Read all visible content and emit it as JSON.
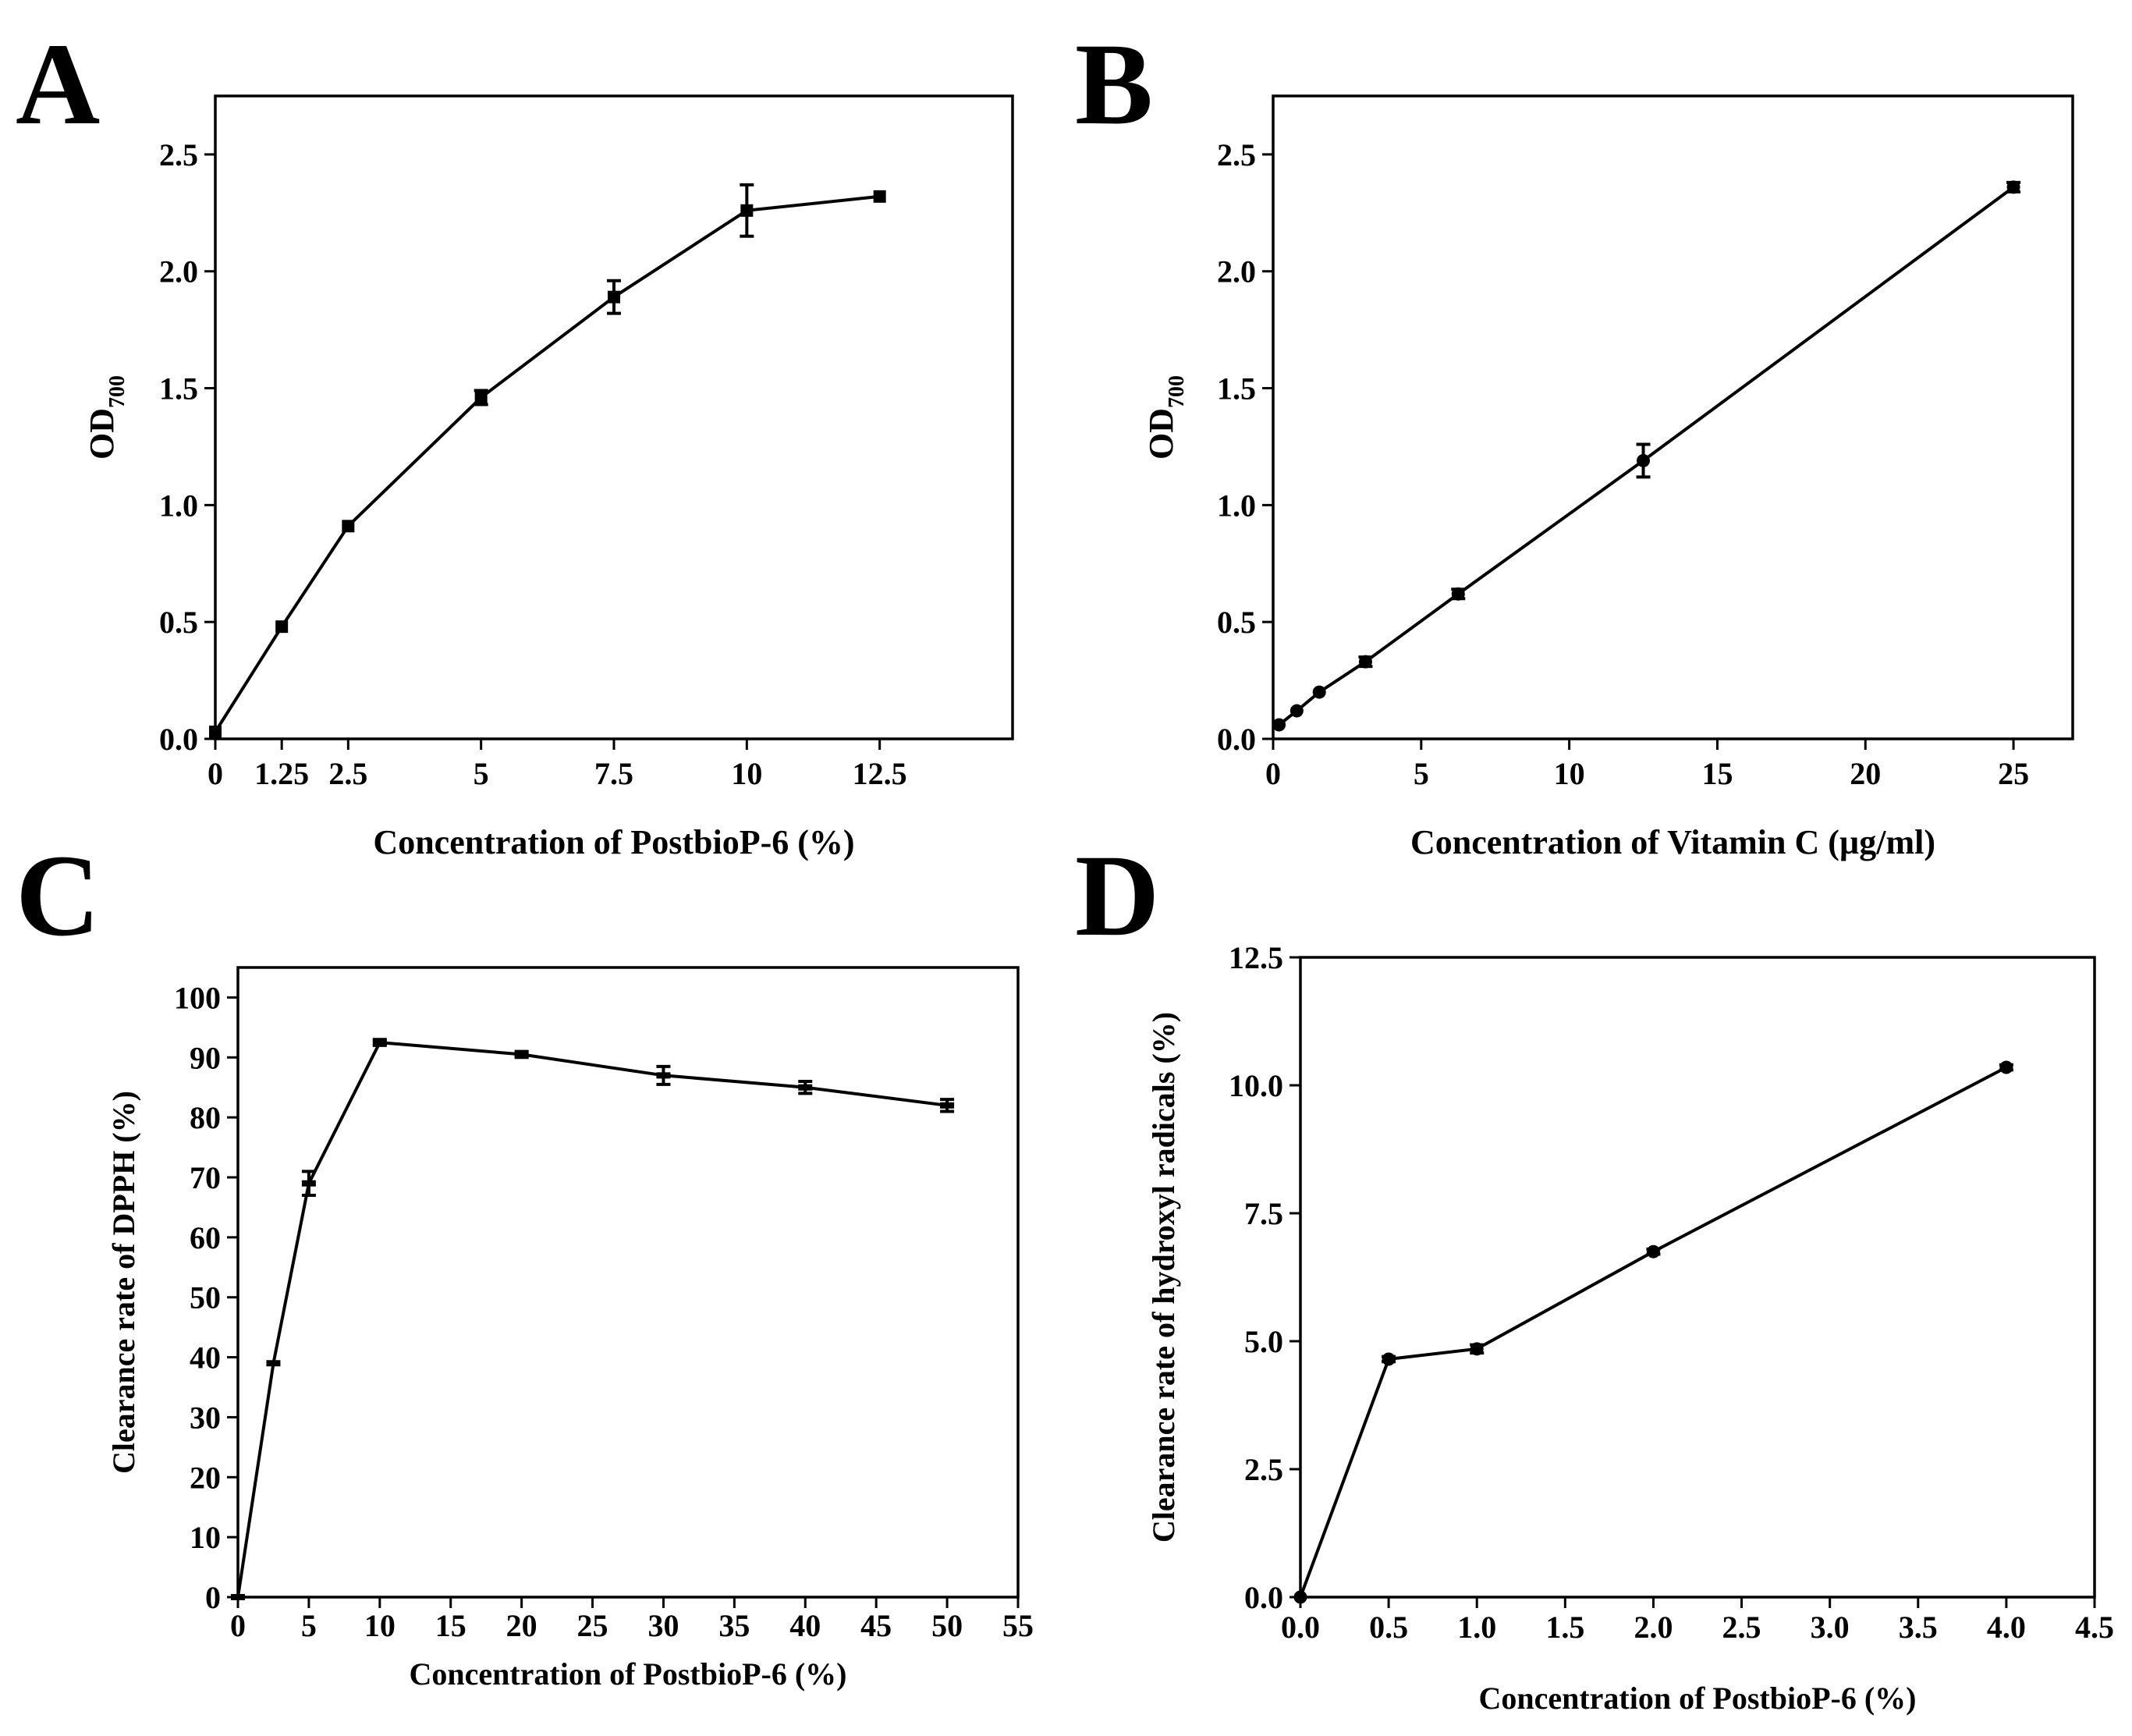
{
  "chart_data": [
    {
      "id": "A",
      "panel_label": "A",
      "type": "line",
      "xlabel": "Concentration of PostbioP-6 (%)",
      "ylabel_main": "OD",
      "ylabel_sub": "700",
      "xlim": [
        0,
        15
      ],
      "ylim": [
        0,
        2.75
      ],
      "xticks": [
        0,
        1.25,
        2.5,
        5,
        7.5,
        10,
        12.5
      ],
      "xtick_labels": [
        "0",
        "1.25",
        "2.5",
        "5",
        "7.5",
        "10",
        "12.5"
      ],
      "yticks": [
        0,
        0.5,
        1.0,
        1.5,
        2.0,
        2.5
      ],
      "ytick_labels": [
        "0.0",
        "0.5",
        "1.0",
        "1.5",
        "2.0",
        "2.5"
      ],
      "marker": "square",
      "points": [
        {
          "x": 0,
          "y": 0.03,
          "err": 0
        },
        {
          "x": 1.25,
          "y": 0.48,
          "err": 0.01
        },
        {
          "x": 2.5,
          "y": 0.91,
          "err": 0.01
        },
        {
          "x": 5,
          "y": 1.46,
          "err": 0.03
        },
        {
          "x": 7.5,
          "y": 1.89,
          "err": 0.07
        },
        {
          "x": 10,
          "y": 2.26,
          "err": 0.11
        },
        {
          "x": 12.5,
          "y": 2.32,
          "err": 0.01
        }
      ]
    },
    {
      "id": "B",
      "panel_label": "B",
      "type": "line",
      "xlabel": "Concentration of Vitamin C (µg/ml)",
      "ylabel_main": "OD",
      "ylabel_sub": "700",
      "xlim": [
        0,
        27
      ],
      "ylim": [
        0,
        2.75
      ],
      "xticks": [
        0,
        5,
        10,
        15,
        20,
        25
      ],
      "xtick_labels": [
        "0",
        "5",
        "10",
        "15",
        "20",
        "25"
      ],
      "yticks": [
        0,
        0.5,
        1.0,
        1.5,
        2.0,
        2.5
      ],
      "ytick_labels": [
        "0.0",
        "0.5",
        "1.0",
        "1.5",
        "2.0",
        "2.5"
      ],
      "marker": "circle",
      "points": [
        {
          "x": 0.2,
          "y": 0.06,
          "err": 0
        },
        {
          "x": 0.8,
          "y": 0.12,
          "err": 0.01
        },
        {
          "x": 1.56,
          "y": 0.2,
          "err": 0.01
        },
        {
          "x": 3.12,
          "y": 0.33,
          "err": 0.02
        },
        {
          "x": 6.25,
          "y": 0.62,
          "err": 0.02
        },
        {
          "x": 12.5,
          "y": 1.19,
          "err": 0.07
        },
        {
          "x": 25,
          "y": 2.36,
          "err": 0.02
        }
      ]
    },
    {
      "id": "C",
      "panel_label": "C",
      "type": "line",
      "xlabel": "Concentration of PostbioP-6 (%)",
      "ylabel": "Clearance rate of  DPPH (%)",
      "xlim": [
        0,
        55
      ],
      "ylim": [
        0,
        105
      ],
      "xticks": [
        0,
        5,
        10,
        15,
        20,
        25,
        30,
        35,
        40,
        45,
        50,
        55
      ],
      "xtick_labels": [
        "0",
        "5",
        "10",
        "15",
        "20",
        "25",
        "30",
        "35",
        "40",
        "45",
        "50",
        "55"
      ],
      "yticks": [
        0,
        10,
        20,
        30,
        40,
        50,
        60,
        70,
        80,
        90,
        100
      ],
      "ytick_labels": [
        "0",
        "10",
        "20",
        "30",
        "40",
        "50",
        "60",
        "70",
        "80",
        "90",
        "100"
      ],
      "marker": "dash",
      "points": [
        {
          "x": 0,
          "y": 0,
          "err": 0
        },
        {
          "x": 2.5,
          "y": 39,
          "err": 0
        },
        {
          "x": 5,
          "y": 69,
          "err": 2
        },
        {
          "x": 10,
          "y": 92.5,
          "err": 0.5
        },
        {
          "x": 20,
          "y": 90.5,
          "err": 0.5
        },
        {
          "x": 30,
          "y": 87,
          "err": 1.5
        },
        {
          "x": 40,
          "y": 85,
          "err": 1
        },
        {
          "x": 50,
          "y": 82,
          "err": 1
        }
      ]
    },
    {
      "id": "D",
      "panel_label": "D",
      "type": "line",
      "xlabel": "Concentration of PostbioP-6 (%)",
      "ylabel": "Clearance rate of  hydroxyl radicals (%)",
      "xlim": [
        0,
        4.5
      ],
      "ylim": [
        0,
        12.5
      ],
      "xticks": [
        0,
        0.5,
        1.0,
        1.5,
        2.0,
        2.5,
        3.0,
        3.5,
        4.0,
        4.5
      ],
      "xtick_labels": [
        "0.0",
        "0.5",
        "1.0",
        "1.5",
        "2.0",
        "2.5",
        "3.0",
        "3.5",
        "4.0",
        "4.5"
      ],
      "yticks": [
        0,
        2.5,
        5.0,
        7.5,
        10.0,
        12.5
      ],
      "ytick_labels": [
        "0.0",
        "2.5",
        "5.0",
        "7.5",
        "10.0",
        "12.5"
      ],
      "marker": "circle",
      "points": [
        {
          "x": 0,
          "y": 0,
          "err": 0
        },
        {
          "x": 0.5,
          "y": 4.65,
          "err": 0.05
        },
        {
          "x": 1.0,
          "y": 4.85,
          "err": 0.08
        },
        {
          "x": 2.0,
          "y": 6.75,
          "err": 0.05
        },
        {
          "x": 4.0,
          "y": 10.35,
          "err": 0.05
        }
      ]
    }
  ]
}
